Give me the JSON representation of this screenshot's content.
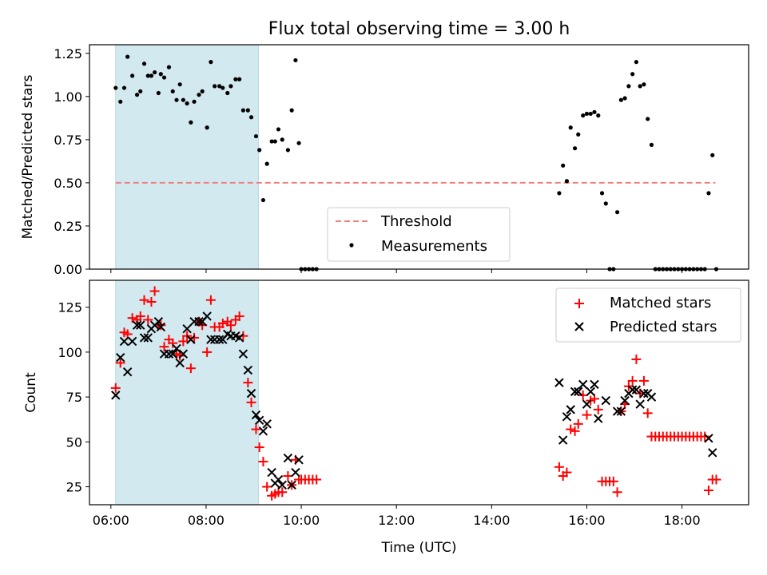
{
  "chart_data": [
    {
      "type": "scatter",
      "title": "Flux total observing time = 3.00 h",
      "xlabel": "",
      "ylabel": "Matched/Predicted stars",
      "ylim": [
        0,
        1.3
      ],
      "yticks": [
        "0.00",
        "0.25",
        "0.50",
        "0.75",
        "1.00",
        "1.25"
      ],
      "shaded_region": {
        "x_start": 6.1,
        "x_end": 9.1,
        "color": "#d3e9f0"
      },
      "threshold": {
        "name": "Threshold",
        "value": 0.5,
        "x_start": 6.1,
        "x_end": 18.7,
        "color": "#f08080"
      },
      "legend_position": "lower-center",
      "series": [
        {
          "name": "Measurements",
          "color": "#000000",
          "marker": "dot",
          "points": [
            [
              6.1,
              1.05
            ],
            [
              6.2,
              0.97
            ],
            [
              6.28,
              1.05
            ],
            [
              6.35,
              1.23
            ],
            [
              6.45,
              1.12
            ],
            [
              6.55,
              1.01
            ],
            [
              6.62,
              1.03
            ],
            [
              6.7,
              1.19
            ],
            [
              6.78,
              1.12
            ],
            [
              6.85,
              1.12
            ],
            [
              6.92,
              1.14
            ],
            [
              7.0,
              1.02
            ],
            [
              7.05,
              1.13
            ],
            [
              7.12,
              1.11
            ],
            [
              7.22,
              1.17
            ],
            [
              7.3,
              1.03
            ],
            [
              7.38,
              0.98
            ],
            [
              7.45,
              1.07
            ],
            [
              7.52,
              0.98
            ],
            [
              7.6,
              0.96
            ],
            [
              7.68,
              0.85
            ],
            [
              7.75,
              0.97
            ],
            [
              7.85,
              1.01
            ],
            [
              7.92,
              1.03
            ],
            [
              8.02,
              0.82
            ],
            [
              8.1,
              1.2
            ],
            [
              8.18,
              1.06
            ],
            [
              8.28,
              1.06
            ],
            [
              8.35,
              1.05
            ],
            [
              8.45,
              1.02
            ],
            [
              8.52,
              1.06
            ],
            [
              8.62,
              1.1
            ],
            [
              8.7,
              1.1
            ],
            [
              8.78,
              0.92
            ],
            [
              8.88,
              0.92
            ],
            [
              8.95,
              0.88
            ],
            [
              9.05,
              0.77
            ],
            [
              9.12,
              0.69
            ],
            [
              9.2,
              0.4
            ],
            [
              9.28,
              0.61
            ],
            [
              9.38,
              0.74
            ],
            [
              9.45,
              0.74
            ],
            [
              9.52,
              0.81
            ],
            [
              9.6,
              0.75
            ],
            [
              9.72,
              0.69
            ],
            [
              9.8,
              0.92
            ],
            [
              9.88,
              1.21
            ],
            [
              9.95,
              0.73
            ],
            [
              10.0,
              0.0
            ],
            [
              10.08,
              0.0
            ],
            [
              10.16,
              0.0
            ],
            [
              10.24,
              0.0
            ],
            [
              10.32,
              0.0
            ],
            [
              15.42,
              0.44
            ],
            [
              15.5,
              0.6
            ],
            [
              15.58,
              0.51
            ],
            [
              15.66,
              0.82
            ],
            [
              15.75,
              0.7
            ],
            [
              15.82,
              0.78
            ],
            [
              15.92,
              0.89
            ],
            [
              16.0,
              0.9
            ],
            [
              16.08,
              0.9
            ],
            [
              16.16,
              0.91
            ],
            [
              16.24,
              0.89
            ],
            [
              16.32,
              0.44
            ],
            [
              16.4,
              0.38
            ],
            [
              16.48,
              0.0
            ],
            [
              16.56,
              0.0
            ],
            [
              16.64,
              0.33
            ],
            [
              16.72,
              0.98
            ],
            [
              16.8,
              0.99
            ],
            [
              16.88,
              1.06
            ],
            [
              16.96,
              1.13
            ],
            [
              17.04,
              1.2
            ],
            [
              17.12,
              1.06
            ],
            [
              17.2,
              1.07
            ],
            [
              17.28,
              0.87
            ],
            [
              17.36,
              0.72
            ],
            [
              17.44,
              0.0
            ],
            [
              17.52,
              0.0
            ],
            [
              17.6,
              0.0
            ],
            [
              17.68,
              0.0
            ],
            [
              17.76,
              0.0
            ],
            [
              17.84,
              0.0
            ],
            [
              17.92,
              0.0
            ],
            [
              18.0,
              0.0
            ],
            [
              18.08,
              0.0
            ],
            [
              18.16,
              0.0
            ],
            [
              18.24,
              0.0
            ],
            [
              18.32,
              0.0
            ],
            [
              18.4,
              0.0
            ],
            [
              18.48,
              0.0
            ],
            [
              18.56,
              0.44
            ],
            [
              18.64,
              0.66
            ],
            [
              18.72,
              0.0
            ]
          ]
        }
      ]
    },
    {
      "type": "scatter",
      "xlabel": "Time (UTC)",
      "ylabel": "Count",
      "xlim": [
        5.55,
        19.4
      ],
      "ylim": [
        15,
        140
      ],
      "yticks": [
        "25",
        "50",
        "75",
        "100",
        "125"
      ],
      "xticks": [
        "06:00",
        "08:00",
        "10:00",
        "12:00",
        "14:00",
        "16:00",
        "18:00"
      ],
      "shaded_region": {
        "x_start": 6.1,
        "x_end": 9.1,
        "color": "#d3e9f0"
      },
      "legend_position": "top-right",
      "series": [
        {
          "name": "Matched stars",
          "color": "#ff0000",
          "marker": "plus",
          "points": [
            [
              6.1,
              80
            ],
            [
              6.2,
              94
            ],
            [
              6.28,
              111
            ],
            [
              6.35,
              110
            ],
            [
              6.45,
              119
            ],
            [
              6.55,
              118
            ],
            [
              6.62,
              120
            ],
            [
              6.7,
              129
            ],
            [
              6.78,
              118
            ],
            [
              6.85,
              128
            ],
            [
              6.92,
              134
            ],
            [
              7.0,
              115
            ],
            [
              7.05,
              115
            ],
            [
              7.12,
              103
            ],
            [
              7.22,
              107
            ],
            [
              7.3,
              105
            ],
            [
              7.38,
              99
            ],
            [
              7.45,
              98
            ],
            [
              7.52,
              106
            ],
            [
              7.6,
              109
            ],
            [
              7.68,
              91
            ],
            [
              7.75,
              108
            ],
            [
              7.85,
              117
            ],
            [
              7.92,
              115
            ],
            [
              8.02,
              100
            ],
            [
              8.1,
              129
            ],
            [
              8.18,
              114
            ],
            [
              8.28,
              114
            ],
            [
              8.35,
              116
            ],
            [
              8.45,
              117
            ],
            [
              8.52,
              115
            ],
            [
              8.62,
              118
            ],
            [
              8.7,
              120
            ],
            [
              8.78,
              109
            ],
            [
              8.88,
              83
            ],
            [
              8.95,
              72
            ],
            [
              9.05,
              57
            ],
            [
              9.12,
              47
            ],
            [
              9.2,
              39
            ],
            [
              9.28,
              25
            ],
            [
              9.38,
              20
            ],
            [
              9.45,
              21
            ],
            [
              9.52,
              22
            ],
            [
              9.6,
              22
            ],
            [
              9.72,
              31
            ],
            [
              9.8,
              26
            ],
            [
              9.88,
              40
            ],
            [
              9.95,
              29
            ],
            [
              10.0,
              29
            ],
            [
              10.08,
              29
            ],
            [
              10.16,
              29
            ],
            [
              10.24,
              29
            ],
            [
              10.32,
              29
            ],
            [
              15.42,
              36
            ],
            [
              15.5,
              31
            ],
            [
              15.58,
              33
            ],
            [
              15.66,
              57
            ],
            [
              15.75,
              56
            ],
            [
              15.82,
              60
            ],
            [
              15.92,
              76
            ],
            [
              16.0,
              65
            ],
            [
              16.08,
              73
            ],
            [
              16.16,
              74
            ],
            [
              16.24,
              68
            ],
            [
              16.32,
              28
            ],
            [
              16.4,
              28
            ],
            [
              16.48,
              28
            ],
            [
              16.56,
              28
            ],
            [
              16.64,
              22
            ],
            [
              16.72,
              67
            ],
            [
              16.8,
              71
            ],
            [
              16.88,
              81
            ],
            [
              16.96,
              84
            ],
            [
              17.04,
              96
            ],
            [
              17.12,
              77
            ],
            [
              17.2,
              84
            ],
            [
              17.28,
              66
            ],
            [
              17.36,
              53
            ],
            [
              17.44,
              53
            ],
            [
              17.52,
              53
            ],
            [
              17.6,
              53
            ],
            [
              17.68,
              53
            ],
            [
              17.76,
              53
            ],
            [
              17.84,
              53
            ],
            [
              17.92,
              53
            ],
            [
              18.0,
              53
            ],
            [
              18.08,
              53
            ],
            [
              18.16,
              53
            ],
            [
              18.24,
              53
            ],
            [
              18.32,
              53
            ],
            [
              18.4,
              53
            ],
            [
              18.48,
              53
            ],
            [
              18.56,
              23
            ],
            [
              18.64,
              29
            ],
            [
              18.72,
              29
            ]
          ]
        },
        {
          "name": "Predicted stars",
          "color": "#000000",
          "marker": "x",
          "points": [
            [
              6.1,
              76
            ],
            [
              6.2,
              97
            ],
            [
              6.28,
              106
            ],
            [
              6.35,
              89
            ],
            [
              6.45,
              106
            ],
            [
              6.55,
              115
            ],
            [
              6.62,
              115
            ],
            [
              6.7,
              108
            ],
            [
              6.78,
              108
            ],
            [
              6.85,
              113
            ],
            [
              6.92,
              115
            ],
            [
              7.0,
              117
            ],
            [
              7.05,
              114
            ],
            [
              7.12,
              99
            ],
            [
              7.22,
              99
            ],
            [
              7.3,
              99
            ],
            [
              7.38,
              102
            ],
            [
              7.45,
              94
            ],
            [
              7.52,
              99
            ],
            [
              7.6,
              113
            ],
            [
              7.68,
              107
            ],
            [
              7.75,
              117
            ],
            [
              7.85,
              117
            ],
            [
              7.92,
              117
            ],
            [
              8.02,
              120
            ],
            [
              8.1,
              107
            ],
            [
              8.18,
              107
            ],
            [
              8.28,
              107
            ],
            [
              8.35,
              107
            ],
            [
              8.45,
              110
            ],
            [
              8.52,
              109
            ],
            [
              8.62,
              109
            ],
            [
              8.7,
              108
            ],
            [
              8.78,
              99
            ],
            [
              8.88,
              90
            ],
            [
              8.95,
              77
            ],
            [
              9.05,
              65
            ],
            [
              9.12,
              62
            ],
            [
              9.2,
              56
            ],
            [
              9.28,
              60
            ],
            [
              9.38,
              33
            ],
            [
              9.45,
              27
            ],
            [
              9.52,
              29
            ],
            [
              9.6,
              26
            ],
            [
              9.72,
              41
            ],
            [
              9.8,
              26
            ],
            [
              9.88,
              33
            ],
            [
              9.95,
              40
            ],
            [
              15.42,
              83
            ],
            [
              15.5,
              51
            ],
            [
              15.58,
              64
            ],
            [
              15.66,
              68
            ],
            [
              15.75,
              78
            ],
            [
              15.82,
              78
            ],
            [
              15.92,
              82
            ],
            [
              16.0,
              71
            ],
            [
              16.08,
              78
            ],
            [
              16.16,
              82
            ],
            [
              16.24,
              63
            ],
            [
              16.4,
              73
            ],
            [
              16.64,
              67
            ],
            [
              16.72,
              67
            ],
            [
              16.8,
              73
            ],
            [
              16.88,
              77
            ],
            [
              16.96,
              79
            ],
            [
              17.04,
              79
            ],
            [
              17.12,
              71
            ],
            [
              17.2,
              77
            ],
            [
              17.28,
              77
            ],
            [
              17.36,
              75
            ],
            [
              18.56,
              52
            ],
            [
              18.64,
              44
            ]
          ]
        }
      ]
    }
  ]
}
